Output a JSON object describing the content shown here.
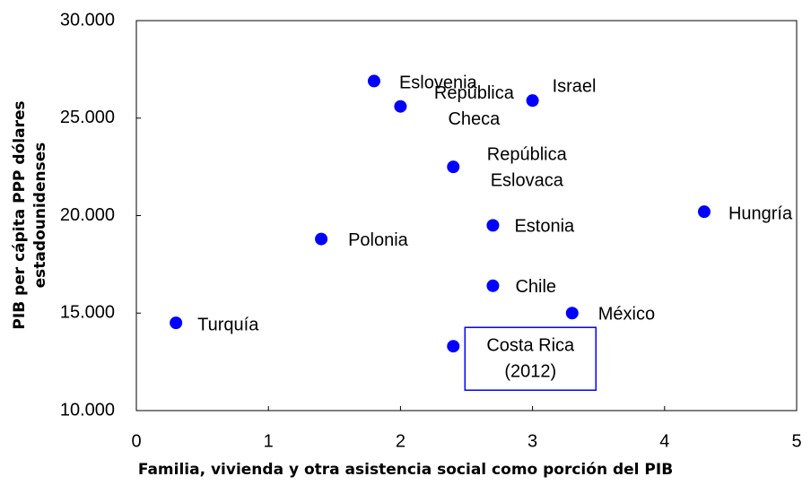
{
  "chart_data": {
    "type": "scatter",
    "xlabel": "Familia, vivienda y otra asistencia social como porción del PIB",
    "ylabel": [
      "PIB per cápita  PPP dólares",
      "estadounidenses"
    ],
    "color": "#0000ff",
    "x": [
      1.8,
      2.0,
      3.0,
      2.4,
      4.3,
      2.7,
      1.4,
      2.7,
      3.3,
      0.3,
      2.4
    ],
    "values": [
      26900,
      25600,
      25900,
      22500,
      20200,
      19500,
      18800,
      16400,
      15000,
      14500,
      13300
    ],
    "labels": [
      [
        "Eslovenia"
      ],
      [
        "República",
        "Checa"
      ],
      [
        "Israel"
      ],
      [
        "República",
        "Eslovaca"
      ],
      [
        "Hungría"
      ],
      [
        "Estonia"
      ],
      [
        "Polonia"
      ],
      [
        "Chile"
      ],
      [
        "México"
      ],
      [
        "Turquía"
      ],
      [
        "Costa Rica",
        "(2012)"
      ]
    ],
    "xlim": [
      0,
      5
    ],
    "xticks": [
      0,
      1,
      2,
      3,
      4,
      5
    ],
    "ylim": [
      10000,
      30000
    ],
    "yticks": [
      {
        "value": 10000,
        "label": "10.000"
      },
      {
        "value": 15000,
        "label": "15.000"
      },
      {
        "value": 20000,
        "label": "20.000"
      },
      {
        "value": 25000,
        "label": "25.000"
      },
      {
        "value": 30000,
        "label": "30.000"
      }
    ]
  }
}
